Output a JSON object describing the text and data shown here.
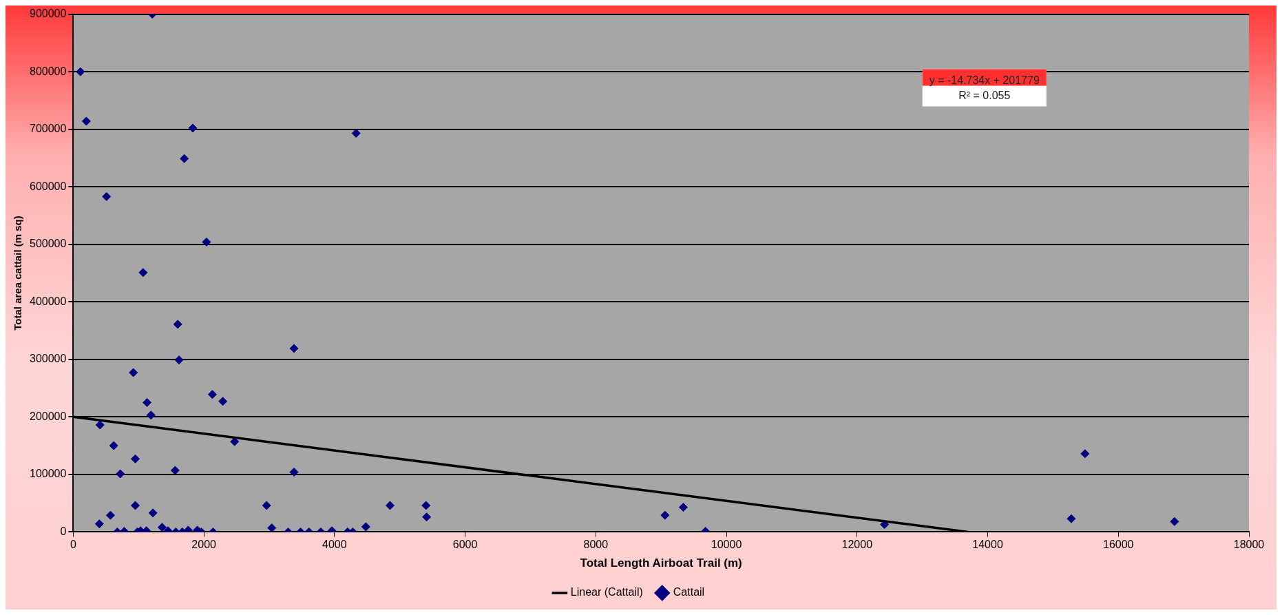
{
  "chart_data": {
    "type": "scatter",
    "xlabel": "Total Length Airboat Trail (m)",
    "ylabel": "Total area cattail (m sq)",
    "xlim": [
      0,
      18000
    ],
    "xticks": [
      0,
      2000,
      4000,
      6000,
      8000,
      10000,
      12000,
      14000,
      16000,
      18000
    ],
    "ylim": [
      0,
      900000
    ],
    "yticks": [
      0,
      100000,
      200000,
      300000,
      400000,
      500000,
      600000,
      700000,
      800000,
      900000
    ],
    "grid": "y",
    "legend": "bottom",
    "marker": "diamond",
    "annotations": [
      "y = -14.734x + 201779",
      "R² = 0.055"
    ],
    "series": [
      {
        "name": "Cattail",
        "color": "#000080",
        "x": [
          1210,
          110,
          200,
          1830,
          1700,
          4330,
          510,
          2040,
          1070,
          1600,
          1620,
          3380,
          920,
          2130,
          2290,
          1130,
          1190,
          410,
          2470,
          620,
          950,
          720,
          1560,
          3380,
          950,
          2960,
          570,
          1220,
          400,
          3040,
          4480,
          1360,
          675,
          780,
          980,
          1030,
          1120,
          1450,
          1570,
          1670,
          1760,
          1900,
          1960,
          2140,
          3290,
          3480,
          3610,
          3790,
          3960,
          4200,
          4280,
          4850,
          5400,
          5410,
          9060,
          9340,
          9680,
          12420,
          15280,
          15490,
          16860
        ],
        "values": [
          900000,
          800000,
          714000,
          702000,
          649000,
          693000,
          583000,
          504000,
          451000,
          361000,
          299000,
          319000,
          277000,
          239000,
          227000,
          225000,
          203000,
          186000,
          157000,
          150000,
          127000,
          101000,
          107000,
          104000,
          46000,
          46000,
          29000,
          33000,
          14000,
          7000,
          9000,
          8000,
          0,
          1000,
          0,
          2000,
          2000,
          2000,
          0,
          0,
          3000,
          3000,
          0,
          0,
          0,
          0,
          0,
          0,
          2000,
          0,
          0,
          46000,
          46000,
          26000,
          29000,
          43000,
          1000,
          13000,
          23000,
          136000,
          18000
        ]
      },
      {
        "name": "Linear (Cattail)",
        "type": "line",
        "color": "#000000",
        "marker": "none",
        "x": [
          0,
          13700
        ],
        "values": [
          200000,
          0
        ]
      }
    ]
  }
}
